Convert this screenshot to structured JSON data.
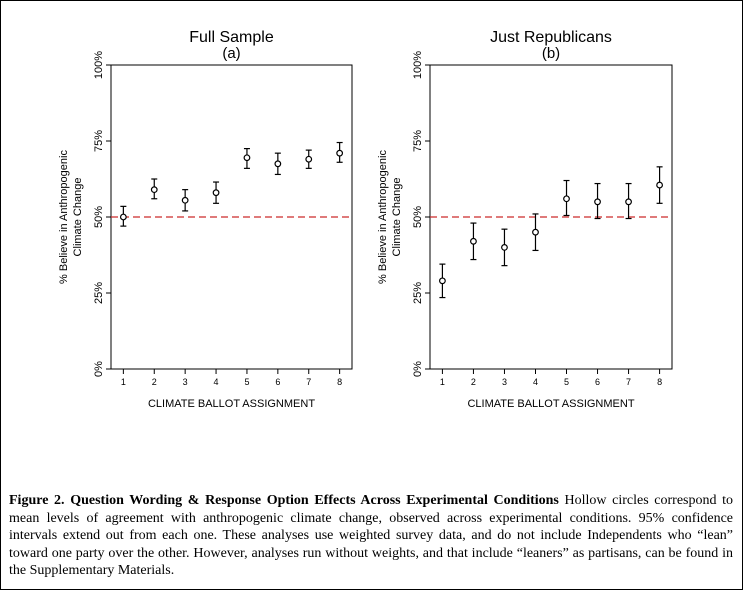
{
  "figure": {
    "caption_label": "Figure 2.",
    "caption_title": "Question Wording & Response Option Effects Across Experimental Conditions",
    "caption_text": "Hollow circles correspond to mean levels of agreement with anthropogenic climate change, observed across experimental conditions. 95% confidence intervals extend out from each one. These analyses use weighted survey data, and do not include Independents who “lean” toward one party over the other. However, analyses run without weights, and that include “leaners” as partisans, can be found in the Supplementary Materials."
  },
  "chart_data": [
    {
      "type": "scatter",
      "title": "Full Sample",
      "subtitle": "(a)",
      "xlabel": "CLIMATE BALLOT ASSIGNMENT",
      "ylabel_lines": [
        "% Believe in Anthropogenic",
        "Climate Change"
      ],
      "x": [
        1,
        2,
        3,
        4,
        5,
        6,
        7,
        8
      ],
      "xticks": [
        "1",
        "2",
        "3",
        "4",
        "5",
        "6",
        "7",
        "8"
      ],
      "xlim": [
        0.6,
        8.4
      ],
      "ylim": [
        0,
        100
      ],
      "yticks": [
        "0%",
        "25%",
        "50%",
        "75%",
        "100%"
      ],
      "ytick_values": [
        0,
        25,
        50,
        75,
        100
      ],
      "reference_line": 50,
      "reference_color": "#cc2a2a",
      "series": [
        {
          "values": [
            50,
            59,
            55.5,
            58,
            69.5,
            67.5,
            69,
            71
          ],
          "ci_low": [
            47,
            56,
            52,
            54.5,
            66,
            64,
            66,
            68
          ],
          "ci_high": [
            53.5,
            62.5,
            59,
            61.5,
            72.5,
            71,
            72,
            74.5
          ]
        }
      ],
      "grid": false
    },
    {
      "type": "scatter",
      "title": "Just Republicans",
      "subtitle": "(b)",
      "xlabel": "CLIMATE BALLOT ASSIGNMENT",
      "ylabel_lines": [
        "% Believe in Anthropogenic",
        "Climate Change"
      ],
      "x": [
        1,
        2,
        3,
        4,
        5,
        6,
        7,
        8
      ],
      "xticks": [
        "1",
        "2",
        "3",
        "4",
        "5",
        "6",
        "7",
        "8"
      ],
      "xlim": [
        0.6,
        8.4
      ],
      "ylim": [
        0,
        100
      ],
      "yticks": [
        "0%",
        "25%",
        "50%",
        "75%",
        "100%"
      ],
      "ytick_values": [
        0,
        25,
        50,
        75,
        100
      ],
      "reference_line": 50,
      "reference_color": "#cc2a2a",
      "series": [
        {
          "values": [
            29,
            42,
            40,
            45,
            56,
            55,
            55,
            60.5
          ],
          "ci_low": [
            23.5,
            36,
            34,
            39,
            50.5,
            49.5,
            49.5,
            54.5
          ],
          "ci_high": [
            34.5,
            48,
            46,
            51,
            62,
            61,
            61,
            66.5
          ]
        }
      ],
      "grid": false
    }
  ]
}
